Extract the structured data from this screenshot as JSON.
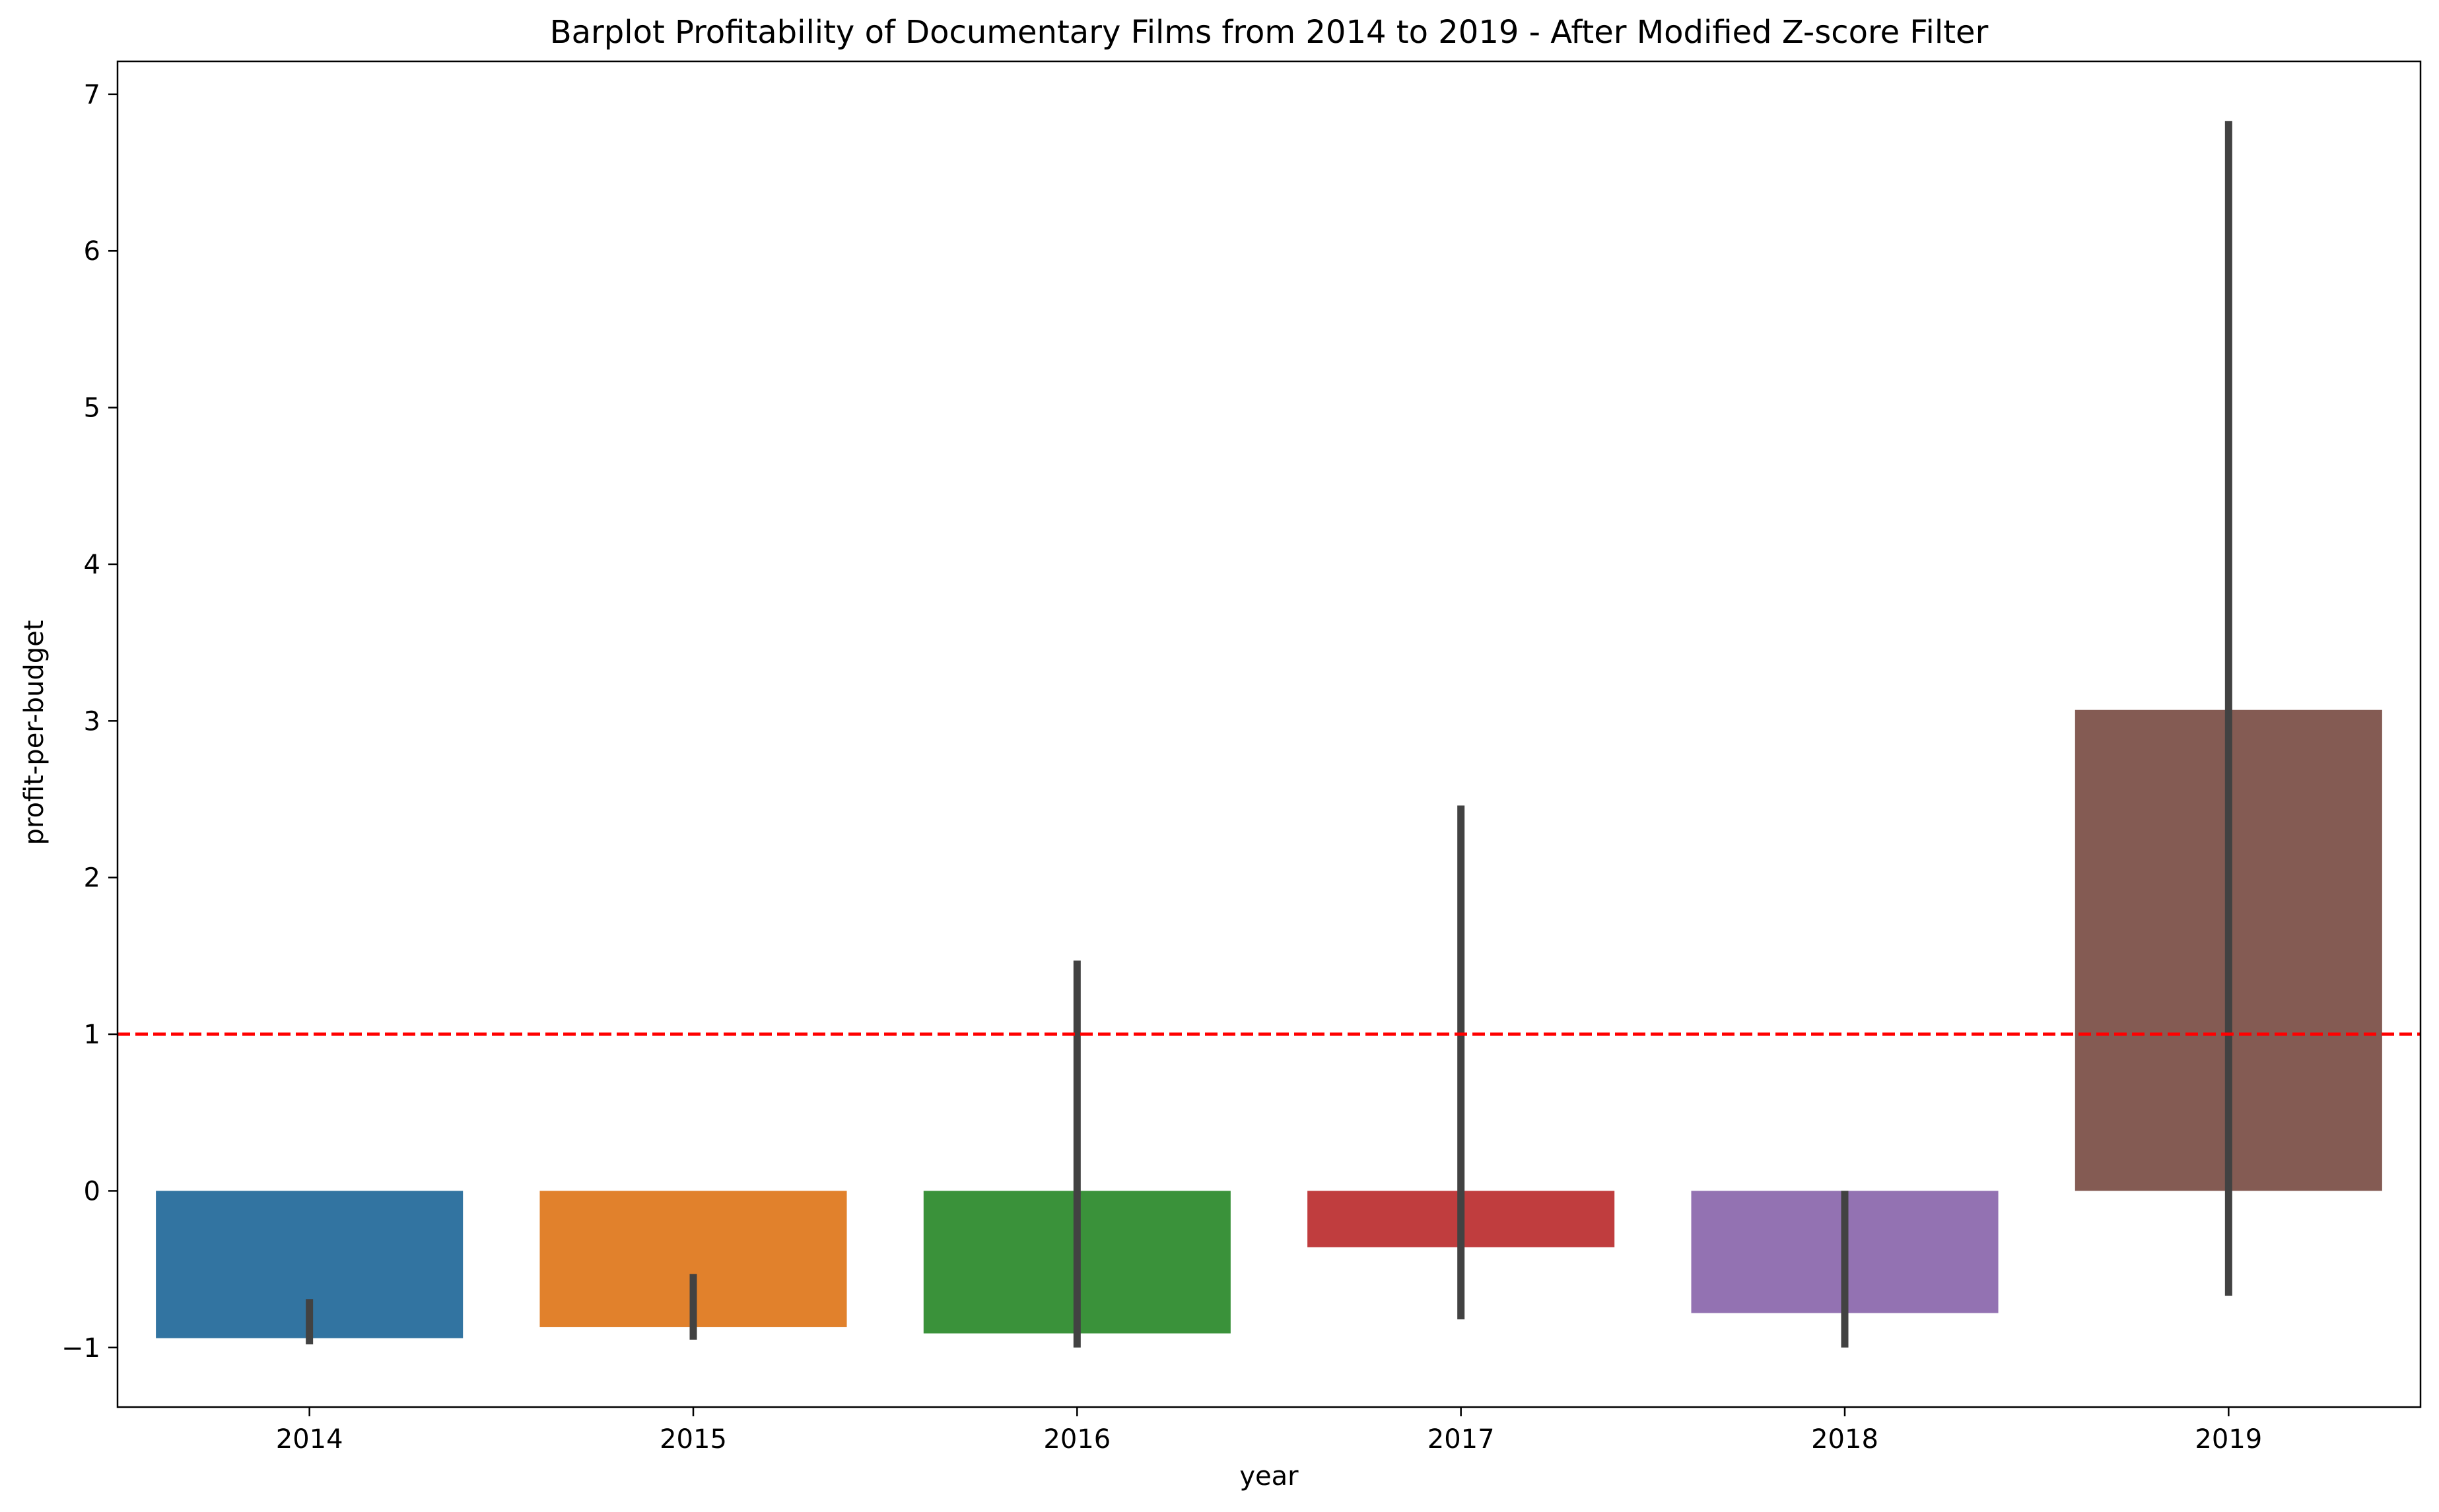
{
  "chart_data": {
    "type": "bar",
    "title": "Barplot Profitability of Documentary Films from 2014 to 2019 - After Modified Z-score Filter",
    "xlabel": "year",
    "ylabel": "profit-per-budget",
    "categories": [
      "2014",
      "2015",
      "2016",
      "2017",
      "2018",
      "2019"
    ],
    "values": [
      -0.94,
      -0.87,
      -0.91,
      -0.36,
      -0.78,
      3.07
    ],
    "error_bars": [
      {
        "low": -0.98,
        "high": -0.69
      },
      {
        "low": -0.95,
        "high": -0.53
      },
      {
        "low": -1.0,
        "high": 1.47
      },
      {
        "low": -0.82,
        "high": 2.46
      },
      {
        "low": -1.0,
        "high": 0.0
      },
      {
        "low": -0.67,
        "high": 6.83
      }
    ],
    "colors": [
      "#3274a1",
      "#e1812c",
      "#3a923a",
      "#c03d3e",
      "#9372b2",
      "#845b53"
    ],
    "error_bar_color": "#424242",
    "reference_line": {
      "y": 1,
      "color": "#ff0000",
      "style": "dashed"
    },
    "ylim": [
      -1.38,
      7.21
    ],
    "yticks": [
      -1,
      0,
      1,
      2,
      3,
      4,
      5,
      6,
      7
    ],
    "ytick_labels": [
      "−1",
      "0",
      "1",
      "2",
      "3",
      "4",
      "5",
      "6",
      "7"
    ],
    "grid": false,
    "legend": "none"
  }
}
